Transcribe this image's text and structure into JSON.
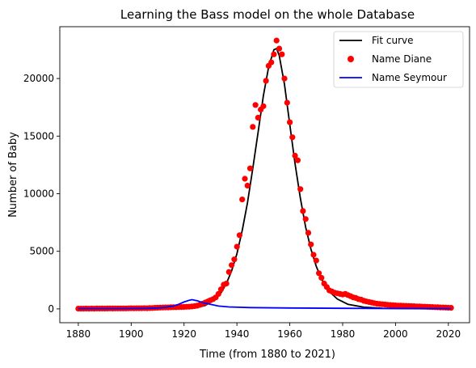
{
  "chart_data": {
    "type": "line",
    "title": "Learning the Bass model on the whole Database",
    "xlabel": "Time (from 1880 to 2021)",
    "ylabel": "Number of Baby",
    "xlim": [
      1873,
      2028
    ],
    "ylim": [
      -1200,
      24500
    ],
    "xticks": [
      1880,
      1900,
      1920,
      1940,
      1960,
      1980,
      2000,
      2020
    ],
    "yticks": [
      0,
      5000,
      10000,
      15000,
      20000
    ],
    "legend": {
      "placement": "top-right",
      "entries": [
        "Fit curve",
        "Name Diane",
        "Name Seymour"
      ]
    },
    "grid": false,
    "series": [
      {
        "name": "Fit curve",
        "kind": "line",
        "color": "#000000",
        "points": [
          [
            1880,
            0
          ],
          [
            1900,
            0
          ],
          [
            1910,
            10
          ],
          [
            1920,
            40
          ],
          [
            1925,
            120
          ],
          [
            1928,
            300
          ],
          [
            1931,
            700
          ],
          [
            1934,
            1400
          ],
          [
            1936,
            2200
          ],
          [
            1938,
            3300
          ],
          [
            1940,
            4800
          ],
          [
            1942,
            6800
          ],
          [
            1944,
            9200
          ],
          [
            1946,
            12200
          ],
          [
            1948,
            15300
          ],
          [
            1950,
            18500
          ],
          [
            1952,
            21000
          ],
          [
            1954,
            22500
          ],
          [
            1955,
            22600
          ],
          [
            1956,
            22000
          ],
          [
            1958,
            19500
          ],
          [
            1960,
            16000
          ],
          [
            1962,
            12600
          ],
          [
            1964,
            9600
          ],
          [
            1966,
            7100
          ],
          [
            1968,
            5200
          ],
          [
            1970,
            3700
          ],
          [
            1972,
            2600
          ],
          [
            1975,
            1500
          ],
          [
            1978,
            850
          ],
          [
            1982,
            400
          ],
          [
            1988,
            150
          ],
          [
            1995,
            60
          ],
          [
            2005,
            20
          ],
          [
            2021,
            0
          ]
        ]
      },
      {
        "name": "Name Diane",
        "kind": "scatter",
        "color": "#ff0000",
        "points": [
          [
            1880,
            20
          ],
          [
            1881,
            25
          ],
          [
            1882,
            20
          ],
          [
            1883,
            30
          ],
          [
            1884,
            25
          ],
          [
            1885,
            30
          ],
          [
            1886,
            25
          ],
          [
            1887,
            35
          ],
          [
            1888,
            30
          ],
          [
            1889,
            35
          ],
          [
            1890,
            30
          ],
          [
            1891,
            35
          ],
          [
            1892,
            40
          ],
          [
            1893,
            35
          ],
          [
            1894,
            40
          ],
          [
            1895,
            45
          ],
          [
            1896,
            40
          ],
          [
            1897,
            45
          ],
          [
            1898,
            40
          ],
          [
            1899,
            50
          ],
          [
            1900,
            55
          ],
          [
            1901,
            50
          ],
          [
            1902,
            55
          ],
          [
            1903,
            60
          ],
          [
            1904,
            55
          ],
          [
            1905,
            65
          ],
          [
            1906,
            60
          ],
          [
            1907,
            70
          ],
          [
            1908,
            80
          ],
          [
            1909,
            90
          ],
          [
            1910,
            100
          ],
          [
            1911,
            110
          ],
          [
            1912,
            120
          ],
          [
            1913,
            130
          ],
          [
            1914,
            130
          ],
          [
            1915,
            140
          ],
          [
            1916,
            150
          ],
          [
            1917,
            150
          ],
          [
            1918,
            160
          ],
          [
            1919,
            160
          ],
          [
            1920,
            170
          ],
          [
            1921,
            180
          ],
          [
            1922,
            190
          ],
          [
            1923,
            210
          ],
          [
            1924,
            240
          ],
          [
            1925,
            280
          ],
          [
            1926,
            350
          ],
          [
            1927,
            450
          ],
          [
            1928,
            550
          ],
          [
            1929,
            650
          ],
          [
            1930,
            750
          ],
          [
            1931,
            850
          ],
          [
            1932,
            1000
          ],
          [
            1933,
            1300
          ],
          [
            1934,
            1700
          ],
          [
            1935,
            2100
          ],
          [
            1936,
            2200
          ],
          [
            1937,
            3200
          ],
          [
            1938,
            3800
          ],
          [
            1939,
            4300
          ],
          [
            1940,
            5400
          ],
          [
            1941,
            6400
          ],
          [
            1942,
            9500
          ],
          [
            1943,
            11300
          ],
          [
            1944,
            10700
          ],
          [
            1945,
            12200
          ],
          [
            1946,
            15800
          ],
          [
            1947,
            17700
          ],
          [
            1948,
            16600
          ],
          [
            1949,
            17300
          ],
          [
            1950,
            17600
          ],
          [
            1951,
            19800
          ],
          [
            1952,
            21100
          ],
          [
            1953,
            21400
          ],
          [
            1954,
            22100
          ],
          [
            1955,
            23300
          ],
          [
            1956,
            22600
          ],
          [
            1957,
            22100
          ],
          [
            1958,
            20000
          ],
          [
            1959,
            17900
          ],
          [
            1960,
            16200
          ],
          [
            1961,
            14900
          ],
          [
            1962,
            13300
          ],
          [
            1963,
            12900
          ],
          [
            1964,
            10400
          ],
          [
            1965,
            8500
          ],
          [
            1966,
            7800
          ],
          [
            1967,
            6600
          ],
          [
            1968,
            5600
          ],
          [
            1969,
            4700
          ],
          [
            1970,
            4200
          ],
          [
            1971,
            3100
          ],
          [
            1972,
            2700
          ],
          [
            1973,
            2200
          ],
          [
            1974,
            1900
          ],
          [
            1975,
            1600
          ],
          [
            1976,
            1500
          ],
          [
            1977,
            1400
          ],
          [
            1978,
            1350
          ],
          [
            1979,
            1300
          ],
          [
            1980,
            1250
          ],
          [
            1981,
            1300
          ],
          [
            1982,
            1200
          ],
          [
            1983,
            1100
          ],
          [
            1984,
            1000
          ],
          [
            1985,
            950
          ],
          [
            1986,
            850
          ],
          [
            1987,
            800
          ],
          [
            1988,
            700
          ],
          [
            1989,
            650
          ],
          [
            1990,
            600
          ],
          [
            1991,
            550
          ],
          [
            1992,
            500
          ],
          [
            1993,
            450
          ],
          [
            1994,
            420
          ],
          [
            1995,
            400
          ],
          [
            1996,
            380
          ],
          [
            1997,
            360
          ],
          [
            1998,
            340
          ],
          [
            1999,
            320
          ],
          [
            2000,
            300
          ],
          [
            2001,
            290
          ],
          [
            2002,
            280
          ],
          [
            2003,
            270
          ],
          [
            2004,
            260
          ],
          [
            2005,
            250
          ],
          [
            2006,
            240
          ],
          [
            2007,
            230
          ],
          [
            2008,
            220
          ],
          [
            2009,
            210
          ],
          [
            2010,
            200
          ],
          [
            2011,
            190
          ],
          [
            2012,
            180
          ],
          [
            2013,
            170
          ],
          [
            2014,
            160
          ],
          [
            2015,
            150
          ],
          [
            2016,
            140
          ],
          [
            2017,
            130
          ],
          [
            2018,
            120
          ],
          [
            2019,
            110
          ],
          [
            2020,
            100
          ],
          [
            2021,
            90
          ]
        ]
      },
      {
        "name": "Name Seymour",
        "kind": "line",
        "color": "#0000ff",
        "points": [
          [
            1880,
            20
          ],
          [
            1895,
            25
          ],
          [
            1905,
            40
          ],
          [
            1910,
            80
          ],
          [
            1913,
            150
          ],
          [
            1916,
            250
          ],
          [
            1918,
            400
          ],
          [
            1920,
            600
          ],
          [
            1922,
            750
          ],
          [
            1923,
            800
          ],
          [
            1925,
            700
          ],
          [
            1927,
            550
          ],
          [
            1930,
            400
          ],
          [
            1933,
            250
          ],
          [
            1937,
            170
          ],
          [
            1945,
            110
          ],
          [
            1960,
            80
          ],
          [
            1980,
            50
          ],
          [
            2000,
            30
          ],
          [
            2021,
            20
          ]
        ]
      }
    ]
  }
}
